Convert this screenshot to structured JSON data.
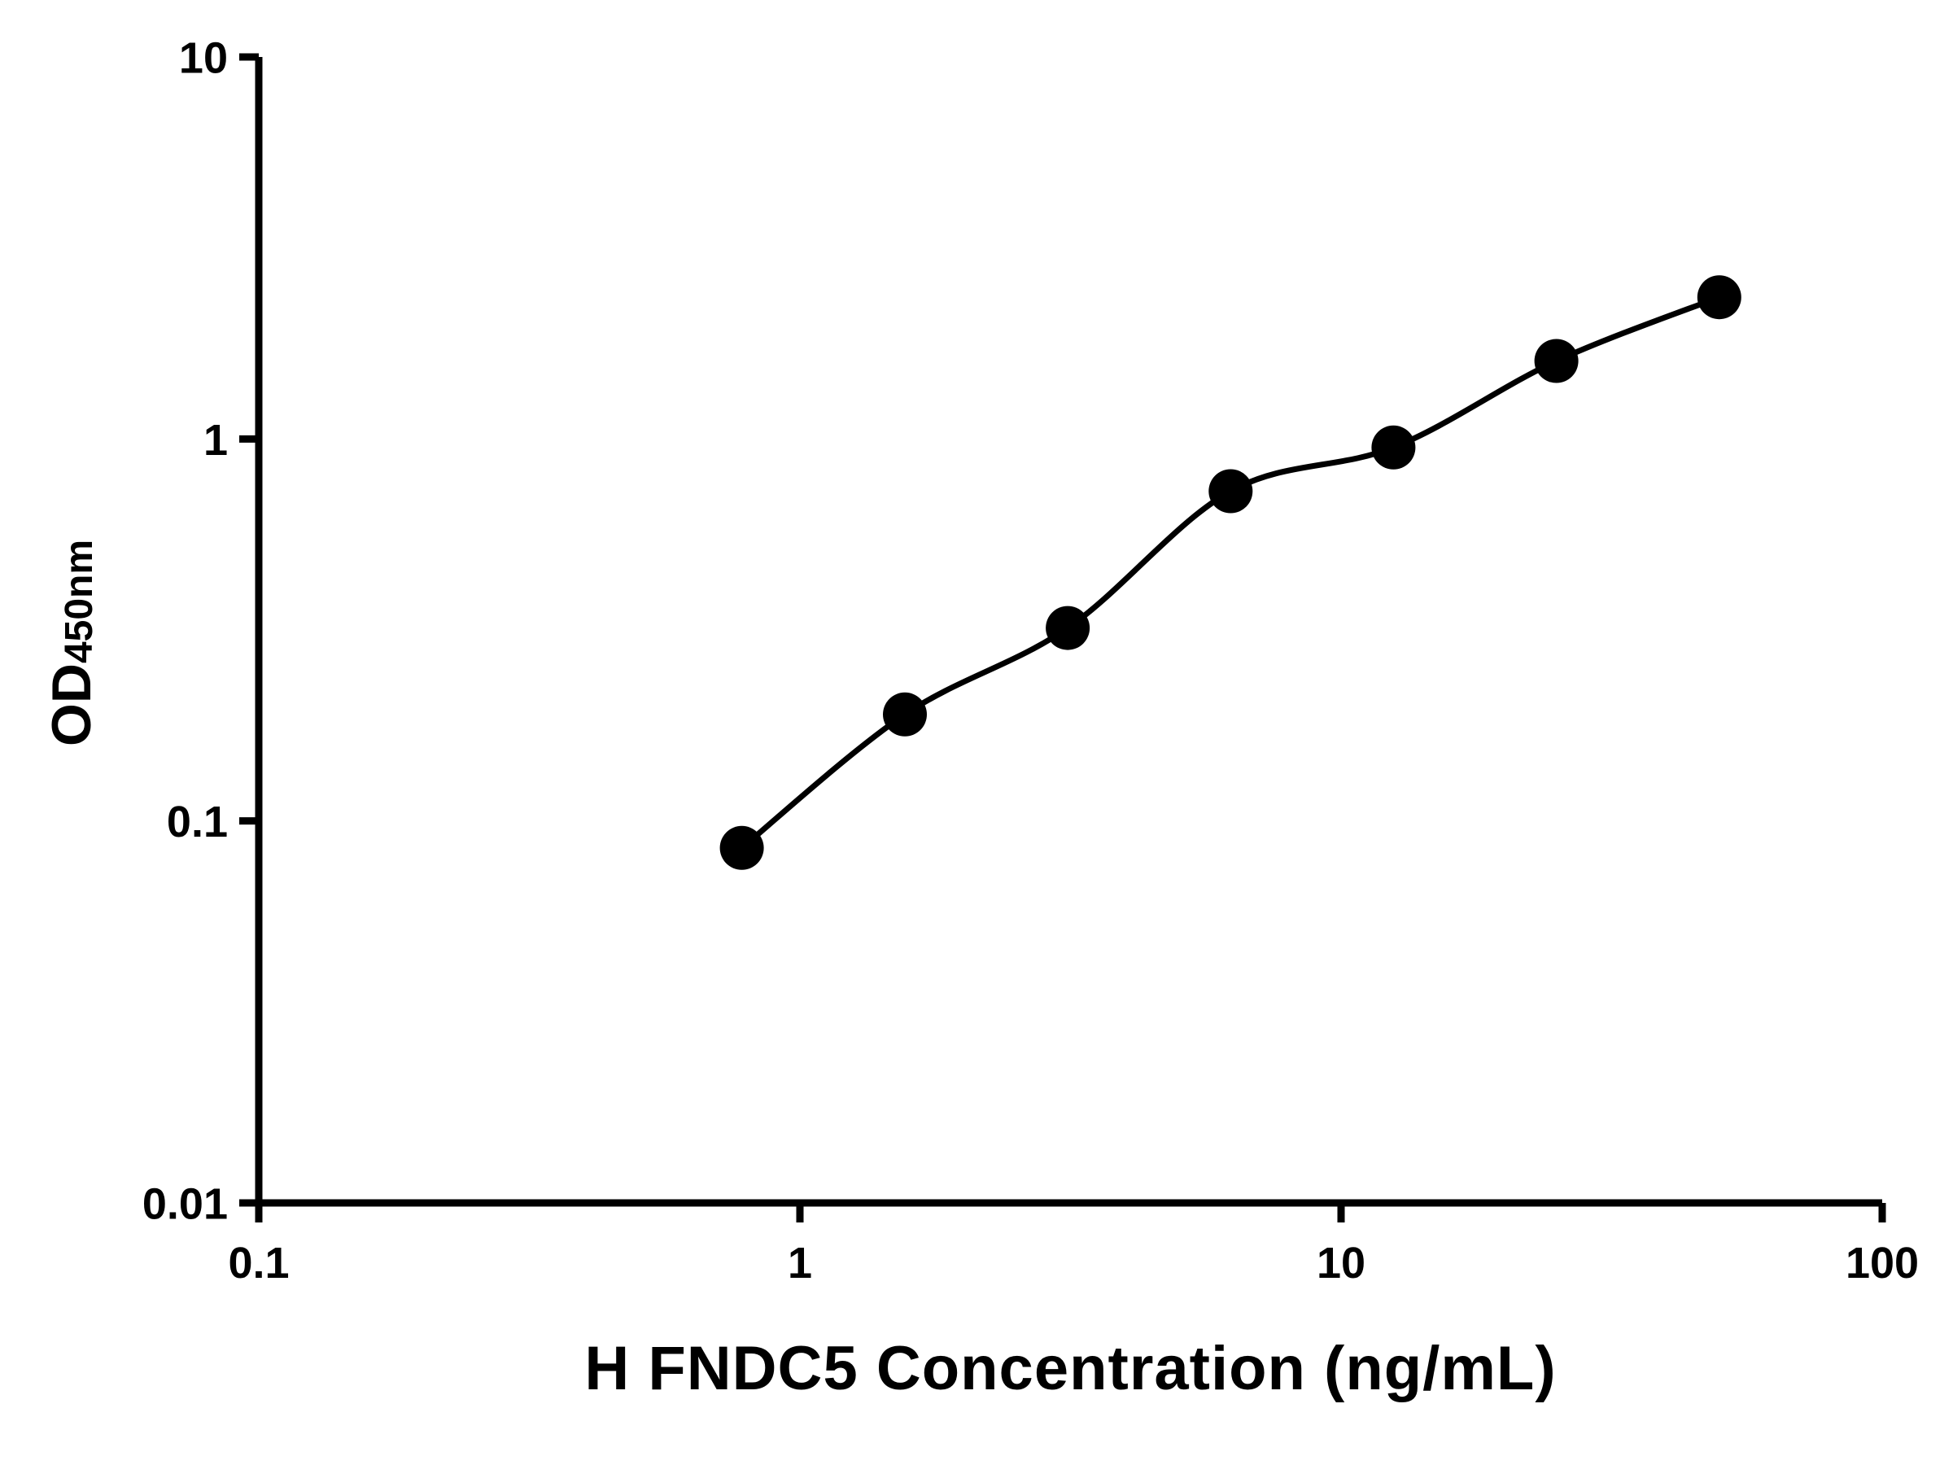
{
  "page": {
    "background": "#ffffff"
  },
  "chart_data": {
    "type": "scatter",
    "title": "",
    "xlabel": "H FNDC5 Concentration (ng/mL)",
    "ylabel": {
      "main": "OD",
      "sub": "450nm"
    },
    "x_scale": "log",
    "y_scale": "log",
    "xlim": [
      0.1,
      100
    ],
    "ylim": [
      0.01,
      10
    ],
    "x_ticks": [
      {
        "v": 0.1,
        "label": "0.1"
      },
      {
        "v": 1,
        "label": "1"
      },
      {
        "v": 10,
        "label": "10"
      },
      {
        "v": 100,
        "label": "100"
      }
    ],
    "y_ticks": [
      {
        "v": 0.01,
        "label": "0.01"
      },
      {
        "v": 0.1,
        "label": "0.1"
      },
      {
        "v": 1,
        "label": "1"
      },
      {
        "v": 10,
        "label": "10"
      }
    ],
    "grid": false,
    "legend": "none",
    "axis_color": "#000000",
    "marker_color": "#000000",
    "curve_color": "#000000",
    "series": [
      {
        "name": "standard-curve",
        "marker": "circle",
        "points": [
          {
            "x": 0.781,
            "y": 0.085
          },
          {
            "x": 1.563,
            "y": 0.19
          },
          {
            "x": 3.125,
            "y": 0.32
          },
          {
            "x": 6.25,
            "y": 0.73
          },
          {
            "x": 12.5,
            "y": 0.95
          },
          {
            "x": 25,
            "y": 1.6
          },
          {
            "x": 50,
            "y": 2.35
          }
        ]
      }
    ],
    "fit_curve": {
      "type": "smooth-through-points"
    }
  }
}
